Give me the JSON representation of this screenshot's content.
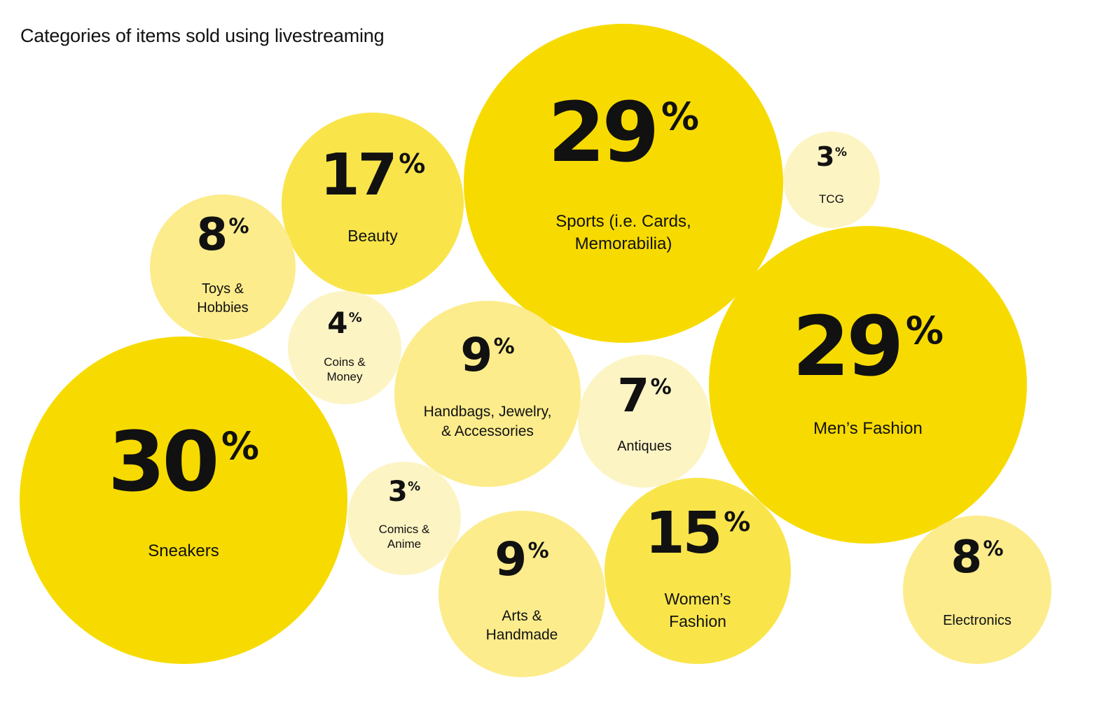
{
  "chart_data": {
    "type": "bubble",
    "title": "Categories of items sold using livestreaming",
    "unit": "%",
    "categories": [
      {
        "label": "Sneakers",
        "value": 30
      },
      {
        "label": "Sports (i.e. Cards, Memorabilia)",
        "value": 29
      },
      {
        "label": "Men’s Fashion",
        "value": 29
      },
      {
        "label": "Beauty",
        "value": 17
      },
      {
        "label": "Women’s Fashion",
        "value": 15
      },
      {
        "label": "Handbags, Jewelry, & Accessories",
        "value": 9
      },
      {
        "label": "Arts & Handmade",
        "value": 9
      },
      {
        "label": "Toys & Hobbies",
        "value": 8
      },
      {
        "label": "Electronics",
        "value": 8
      },
      {
        "label": "Antiques",
        "value": 7
      },
      {
        "label": "Coins & Money",
        "value": 4
      },
      {
        "label": "TCG",
        "value": 3
      },
      {
        "label": "Comics & Anime",
        "value": 3
      }
    ],
    "colors": {
      "large": "#F7DB00",
      "medium": "#F9E54A",
      "small": "#FCEC8C",
      "tiny": "#FDF4C4",
      "text": "#111111"
    }
  }
}
